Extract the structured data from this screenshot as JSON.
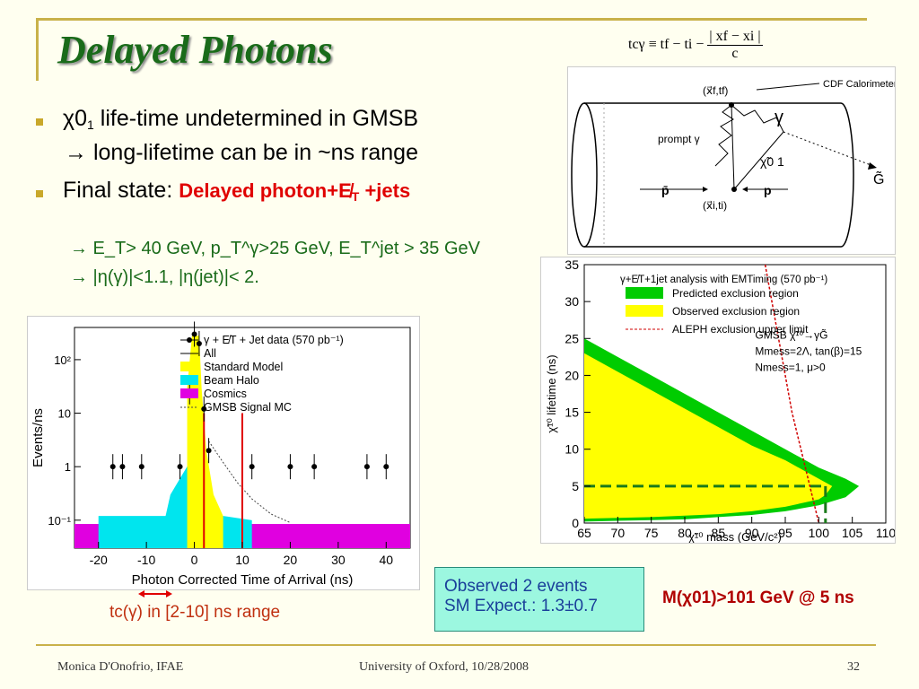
{
  "slide": {
    "title": "Delayed Photons",
    "formula": {
      "lhs": "tcγ ≡ tf − ti −",
      "numerator": "| xf − xi |",
      "denominator": "c"
    },
    "bullets": [
      {
        "line1": "life-time undetermined in GMSB",
        "line2": "long-lifetime can be in ~ns range",
        "symbol": "χ0",
        "sub": "1",
        "arrow": "→"
      },
      {
        "label": "Final state:",
        "red": "Delayed photon+E̸",
        "red_sub": "T",
        "red_tail": " +jets"
      }
    ],
    "cuts": [
      "→ E_T> 40 GeV, p_T^γ>25 GeV, E_T^jet > 35 GeV",
      "→ |η(γ)|<1.1, |η(jet)|< 2."
    ],
    "observed_box": {
      "line1": "Observed 2 events",
      "line2": "SM Expect.: 1.3±0.7"
    },
    "mass_limit": "M(χ01)>101 GeV @ 5 ns",
    "tc_range": "tc(γ) in [2-10] ns range",
    "footer": {
      "left": "Monica D'Onofrio, IFAE",
      "center": "University of Oxford, 10/28/2008",
      "page": "32"
    }
  },
  "diagram": {
    "labels": [
      "(x⃗f,tf)",
      "CDF Calorimeter",
      "prompt γ",
      "γ",
      "χ̃0 1",
      "G̃",
      "p̄",
      "(x⃗i,ti)",
      "p"
    ]
  },
  "chart_data": [
    {
      "type": "bar",
      "xlabel": "Photon Corrected Time of Arrival (ns)",
      "ylabel": "Events/ns",
      "xlim": [
        -25,
        45
      ],
      "ylim": [
        0.03,
        400
      ],
      "log_y": true,
      "x_ticks": [
        "-20",
        "-10",
        "0",
        "10",
        "20",
        "30",
        "40"
      ],
      "y_ticks": [
        "10⁻¹",
        "1",
        "10",
        "10²"
      ],
      "legend": [
        "γ + E̸T + Jet data (570 pb⁻¹)",
        "All",
        "Standard Model",
        "Beam Halo",
        "Cosmics",
        "GMSB Signal MC"
      ],
      "legend_colors": {
        "data": "#000000",
        "standard_model": "#ffff00",
        "beam_halo": "#00e5ee",
        "cosmics": "#e000e0",
        "gmsb": "#444444"
      },
      "data_points": [
        {
          "x": -17,
          "y": 1
        },
        {
          "x": -15,
          "y": 1
        },
        {
          "x": -11,
          "y": 1
        },
        {
          "x": -3,
          "y": 1
        },
        {
          "x": 0,
          "y": 300
        },
        {
          "x": 1,
          "y": 200
        },
        {
          "x": -1,
          "y": 25
        },
        {
          "x": 2,
          "y": 12
        },
        {
          "x": 3,
          "y": 2
        },
        {
          "x": 12,
          "y": 1
        },
        {
          "x": 20,
          "y": 1
        },
        {
          "x": 25,
          "y": 1
        },
        {
          "x": 36,
          "y": 1
        },
        {
          "x": 40,
          "y": 1
        }
      ],
      "signal_window_ns": [
        2,
        10
      ]
    },
    {
      "type": "area",
      "title": "γ+E̸T+1jet analysis with EMTiming (570 pb⁻¹)",
      "xlabel": "χ̃¹⁰ mass (GeV/c²)",
      "ylabel": "χ̃¹⁰ lifetime (ns)",
      "xlim": [
        65,
        110
      ],
      "ylim": [
        0,
        35
      ],
      "x_ticks": [
        "65",
        "70",
        "75",
        "80",
        "85",
        "90",
        "95",
        "100",
        "105",
        "110"
      ],
      "y_ticks": [
        "0",
        "5",
        "10",
        "15",
        "20",
        "25",
        "30",
        "35"
      ],
      "legend": [
        "Predicted exclusion region",
        "Observed exclusion region",
        "ALEPH exclusion upper limit"
      ],
      "colors": {
        "predicted": "#00cc00",
        "observed": "#ffff00",
        "aleph": "#d00000",
        "limit_line": "#1a7a1a"
      },
      "model_text": [
        "GMSB χ̃¹⁰→γG̃",
        "Mmess=2Λ, tan(β)=15",
        "Nmess=1, μ>0"
      ],
      "predicted_boundary": {
        "x": [
          65,
          70,
          75,
          80,
          85,
          90,
          95,
          100,
          104,
          106,
          104,
          100,
          95,
          90,
          85,
          80,
          75,
          70,
          65
        ],
        "y": [
          25,
          22.5,
          20,
          17.5,
          15,
          12.5,
          10,
          7.5,
          6,
          5,
          3.5,
          2.4,
          1.6,
          1.1,
          0.8,
          0.5,
          0.4,
          0.3,
          0.2
        ]
      },
      "observed_boundary": {
        "x": [
          65,
          70,
          75,
          80,
          85,
          90,
          95,
          100,
          102,
          101,
          100,
          95,
          90,
          85,
          80,
          75,
          70,
          65
        ],
        "y": [
          23,
          20.5,
          18,
          15.5,
          13,
          10.5,
          8.5,
          6,
          5,
          3.8,
          3.2,
          2.2,
          1.6,
          1.2,
          1.0,
          0.8,
          0.7,
          0.6
        ]
      },
      "aleph_line": {
        "x": [
          92,
          96,
          100
        ],
        "y": [
          35,
          15,
          0
        ]
      },
      "limit": {
        "mass": 101,
        "lifetime": 5
      }
    }
  ]
}
